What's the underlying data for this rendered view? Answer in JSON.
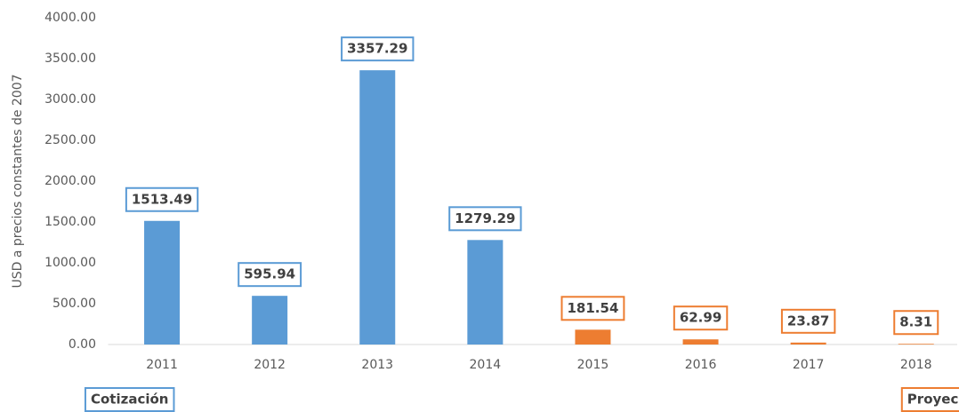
{
  "chart_data": {
    "type": "bar",
    "y_label": "USD a precios constantes de 2007",
    "categories": [
      "2011",
      "2012",
      "2013",
      "2014",
      "2015",
      "2016",
      "2017",
      "2018"
    ],
    "series": [
      {
        "name": "Cotización",
        "color": "#5b9bd5",
        "values": [
          1513.49,
          595.94,
          3357.29,
          1279.29,
          null,
          null,
          null,
          null
        ]
      },
      {
        "name": "Proyección",
        "color": "#ed7d31",
        "values": [
          null,
          null,
          null,
          null,
          181.54,
          62.99,
          23.87,
          8.31
        ]
      }
    ],
    "ylim": [
      0,
      4000
    ],
    "yticks": [
      {
        "value": 0,
        "label": "0.00"
      },
      {
        "value": 500,
        "label": "500.00"
      },
      {
        "value": 1000,
        "label": "1000.00"
      },
      {
        "value": 1500,
        "label": "1500.00"
      },
      {
        "value": 2000,
        "label": "2000.00"
      },
      {
        "value": 2500,
        "label": "2500.00"
      },
      {
        "value": 3000,
        "label": "3000.00"
      },
      {
        "value": 3500,
        "label": "3500.00"
      },
      {
        "value": 4000,
        "label": "4000.00"
      }
    ],
    "grid": false
  }
}
